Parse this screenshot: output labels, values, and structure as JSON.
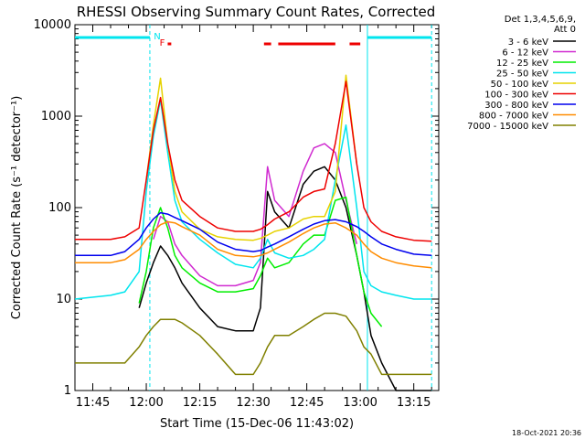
{
  "chart_data": {
    "type": "line",
    "title": "RHESSI Observing Summary Count Rates, Corrected",
    "xlabel": "Start Time (15-Dec-06 11:43:02)",
    "ylabel": "Corrected Count Rate (s⁻¹ detector⁻¹)",
    "yscale": "log",
    "xlim": [
      "11:40",
      "13:22"
    ],
    "ylim": [
      1,
      10000
    ],
    "x_ticks": [
      "11:45",
      "12:00",
      "12:15",
      "12:30",
      "12:45",
      "13:00",
      "13:15"
    ],
    "y_ticks": [
      "1",
      "10",
      "100",
      "1000",
      "10000"
    ],
    "legend_header": [
      "Det 1,3,4,5,6,9,",
      "Att 0"
    ],
    "legend_position": "right",
    "timestamp": "18-Oct-2021 20:36",
    "flags": [
      {
        "label": "N",
        "color": "#00e5ee",
        "intervals": [
          [
            "11:40",
            "12:01"
          ],
          [
            "13:02",
            "13:20"
          ]
        ]
      },
      {
        "label": "F",
        "color": "#ee0000",
        "intervals": [
          [
            "12:06",
            "12:07"
          ],
          [
            "12:33",
            "12:35"
          ],
          [
            "12:37",
            "12:53"
          ],
          [
            "12:57",
            "13:00"
          ]
        ]
      }
    ],
    "vlines": [
      {
        "time": "12:01",
        "color": "#00e5ee",
        "style": "dashed"
      },
      {
        "time": "13:02",
        "color": "#00e5ee",
        "style": "solid"
      },
      {
        "time": "13:20",
        "color": "#00e5ee",
        "style": "dashed"
      }
    ],
    "x": [
      "11:40",
      "11:50",
      "11:54",
      "11:58",
      "12:00",
      "12:02",
      "12:04",
      "12:06",
      "12:08",
      "12:10",
      "12:15",
      "12:20",
      "12:25",
      "12:30",
      "12:32",
      "12:34",
      "12:36",
      "12:40",
      "12:44",
      "12:47",
      "12:50",
      "12:53",
      "12:56",
      "12:59",
      "13:01",
      "13:03",
      "13:06",
      "13:10",
      "13:15",
      "13:20"
    ],
    "series": [
      {
        "name": "3 - 6 keV",
        "color": "#000000",
        "values": [
          null,
          null,
          null,
          8,
          15,
          25,
          38,
          30,
          22,
          15,
          8,
          5,
          4.5,
          4.5,
          8,
          150,
          90,
          60,
          180,
          250,
          280,
          200,
          100,
          30,
          12,
          4,
          2,
          1,
          1,
          1
        ]
      },
      {
        "name": "6 - 12 keV",
        "color": "#d02ad0",
        "values": [
          null,
          null,
          null,
          null,
          null,
          45,
          80,
          70,
          40,
          30,
          18,
          14,
          14,
          16,
          25,
          280,
          120,
          80,
          250,
          450,
          500,
          400,
          120,
          40,
          null,
          null,
          null,
          null,
          null,
          null
        ]
      },
      {
        "name": "12 - 25 keV",
        "color": "#00ee00",
        "values": [
          null,
          null,
          null,
          9,
          20,
          60,
          100,
          60,
          30,
          22,
          15,
          12,
          12,
          13,
          18,
          28,
          22,
          25,
          40,
          50,
          50,
          120,
          130,
          30,
          12,
          7,
          5,
          null,
          null,
          null
        ]
      },
      {
        "name": "25 - 50 keV",
        "color": "#00e5ee",
        "values": [
          10,
          11,
          12,
          20,
          150,
          600,
          1500,
          400,
          120,
          70,
          45,
          32,
          24,
          22,
          28,
          45,
          32,
          28,
          30,
          35,
          45,
          200,
          800,
          100,
          20,
          14,
          12,
          11,
          10,
          10
        ]
      },
      {
        "name": "50 - 100 keV",
        "color": "#e6d200",
        "values": [
          null,
          null,
          null,
          null,
          200,
          800,
          2600,
          500,
          150,
          90,
          58,
          48,
          45,
          44,
          46,
          50,
          55,
          60,
          75,
          80,
          80,
          150,
          2800,
          300,
          null,
          null,
          null,
          null,
          null,
          null
        ]
      },
      {
        "name": "100 - 300 keV",
        "color": "#ee0000",
        "values": [
          45,
          45,
          48,
          60,
          200,
          700,
          1600,
          500,
          200,
          120,
          80,
          60,
          55,
          55,
          58,
          65,
          75,
          90,
          130,
          150,
          160,
          500,
          2400,
          300,
          100,
          70,
          55,
          48,
          44,
          43
        ]
      },
      {
        "name": "300 - 800 keV",
        "color": "#0000ee",
        "values": [
          30,
          30,
          33,
          45,
          60,
          75,
          88,
          85,
          78,
          72,
          58,
          42,
          35,
          33,
          34,
          37,
          40,
          48,
          58,
          66,
          72,
          74,
          70,
          62,
          55,
          48,
          40,
          35,
          31,
          30
        ]
      },
      {
        "name": "800 - 7000 keV",
        "color": "#ff8c00",
        "values": [
          25,
          25,
          27,
          35,
          45,
          55,
          65,
          70,
          68,
          62,
          50,
          35,
          30,
          29,
          30,
          32,
          35,
          42,
          52,
          60,
          66,
          68,
          60,
          50,
          40,
          33,
          28,
          25,
          23,
          22
        ]
      },
      {
        "name": "7000 - 15000 keV",
        "color": "#808000",
        "values": [
          2,
          2,
          2,
          3,
          4,
          5,
          6,
          6,
          6,
          5.5,
          4,
          2.5,
          1.5,
          1.5,
          2,
          3,
          4,
          4,
          5,
          6,
          7,
          7,
          6.5,
          4.5,
          3,
          2.5,
          1.5,
          1.5,
          1.5,
          1.5
        ]
      }
    ]
  }
}
